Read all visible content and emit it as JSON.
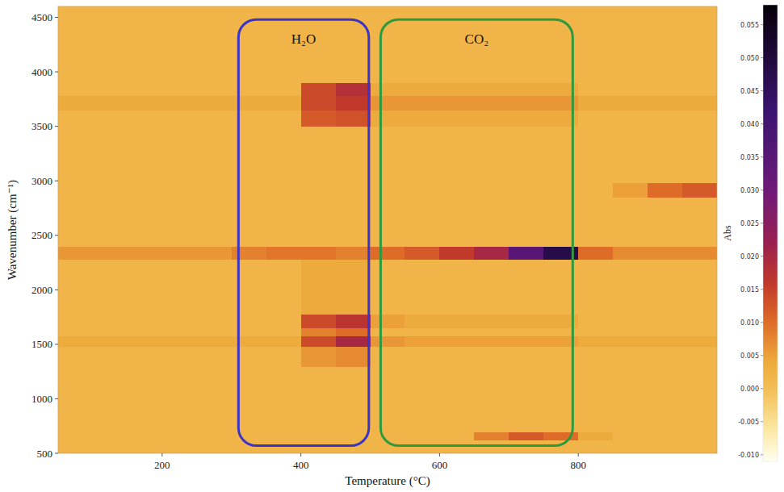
{
  "chart_data": {
    "type": "heatmap",
    "x_label": "Temperature (°C)",
    "y_label": "Wavenumber (cm⁻¹)",
    "xlim": [
      50,
      1000
    ],
    "ylim": [
      500,
      4600
    ],
    "xticks": [
      200,
      400,
      600,
      800
    ],
    "yticks": [
      500,
      1000,
      1500,
      2000,
      2500,
      3000,
      3500,
      4000,
      4500
    ],
    "grid": false,
    "x_edges": [
      50,
      100,
      150,
      200,
      250,
      300,
      350,
      400,
      450,
      500,
      550,
      600,
      650,
      700,
      750,
      800,
      850,
      900,
      950,
      1000
    ],
    "y_edges": [
      500,
      620,
      700,
      1300,
      1480,
      1580,
      1650,
      1780,
      2280,
      2400,
      2850,
      2980,
      3500,
      3650,
      3780,
      3900,
      4600
    ],
    "cells": [
      [
        0.002,
        0.002,
        0.002,
        0.002,
        0.002,
        0.002,
        0.002,
        0.002,
        0.002,
        0.002,
        0.002,
        0.002,
        0.002,
        0.002,
        0.002,
        0.002,
        0.002,
        0.002,
        0.002
      ],
      [
        0.002,
        0.002,
        0.002,
        0.002,
        0.002,
        0.002,
        0.002,
        0.002,
        0.002,
        0.002,
        0.002,
        0.002,
        0.008,
        0.012,
        0.01,
        0.004,
        0.002,
        0.002,
        0.002
      ],
      [
        0.002,
        0.002,
        0.002,
        0.002,
        0.002,
        0.002,
        0.002,
        0.002,
        0.002,
        0.002,
        0.002,
        0.002,
        0.002,
        0.002,
        0.002,
        0.002,
        0.002,
        0.002,
        0.002
      ],
      [
        0.002,
        0.002,
        0.002,
        0.002,
        0.002,
        0.002,
        0.002,
        0.006,
        0.007,
        0.002,
        0.002,
        0.002,
        0.002,
        0.002,
        0.002,
        0.002,
        0.002,
        0.002,
        0.002
      ],
      [
        0.004,
        0.004,
        0.004,
        0.004,
        0.004,
        0.004,
        0.004,
        0.014,
        0.02,
        0.006,
        0.005,
        0.005,
        0.005,
        0.005,
        0.005,
        0.004,
        0.004,
        0.004,
        0.004
      ],
      [
        0.002,
        0.002,
        0.002,
        0.002,
        0.002,
        0.002,
        0.002,
        0.008,
        0.01,
        0.002,
        0.002,
        0.002,
        0.002,
        0.002,
        0.002,
        0.002,
        0.002,
        0.002,
        0.002
      ],
      [
        0.002,
        0.002,
        0.002,
        0.002,
        0.002,
        0.002,
        0.002,
        0.014,
        0.017,
        0.005,
        0.004,
        0.004,
        0.004,
        0.004,
        0.004,
        0.002,
        0.002,
        0.002,
        0.002
      ],
      [
        0.002,
        0.002,
        0.002,
        0.002,
        0.002,
        0.002,
        0.002,
        0.004,
        0.004,
        0.002,
        0.002,
        0.002,
        0.002,
        0.002,
        0.002,
        0.002,
        0.002,
        0.002,
        0.002
      ],
      [
        0.006,
        0.006,
        0.006,
        0.006,
        0.006,
        0.008,
        0.009,
        0.009,
        0.008,
        0.01,
        0.012,
        0.016,
        0.02,
        0.035,
        0.048,
        0.01,
        0.007,
        0.007,
        0.007
      ],
      [
        0.002,
        0.002,
        0.002,
        0.002,
        0.002,
        0.002,
        0.002,
        0.002,
        0.002,
        0.002,
        0.002,
        0.002,
        0.002,
        0.002,
        0.002,
        0.002,
        0.002,
        0.002,
        0.002
      ],
      [
        0.002,
        0.002,
        0.002,
        0.002,
        0.002,
        0.002,
        0.002,
        0.002,
        0.002,
        0.002,
        0.002,
        0.002,
        0.002,
        0.002,
        0.002,
        0.002,
        0.005,
        0.01,
        0.012
      ],
      [
        0.002,
        0.002,
        0.002,
        0.002,
        0.002,
        0.002,
        0.002,
        0.002,
        0.002,
        0.002,
        0.002,
        0.002,
        0.002,
        0.002,
        0.002,
        0.002,
        0.002,
        0.002,
        0.002
      ],
      [
        0.002,
        0.002,
        0.002,
        0.002,
        0.002,
        0.002,
        0.002,
        0.012,
        0.013,
        0.004,
        0.004,
        0.004,
        0.004,
        0.004,
        0.004,
        0.002,
        0.002,
        0.002,
        0.002
      ],
      [
        0.004,
        0.004,
        0.004,
        0.004,
        0.004,
        0.004,
        0.004,
        0.014,
        0.016,
        0.006,
        0.006,
        0.006,
        0.006,
        0.006,
        0.006,
        0.004,
        0.004,
        0.004,
        0.004
      ],
      [
        0.002,
        0.002,
        0.002,
        0.002,
        0.002,
        0.002,
        0.002,
        0.014,
        0.018,
        0.004,
        0.004,
        0.004,
        0.004,
        0.004,
        0.004,
        0.002,
        0.002,
        0.002,
        0.002
      ],
      [
        0.002,
        0.002,
        0.002,
        0.002,
        0.002,
        0.002,
        0.002,
        0.002,
        0.002,
        0.002,
        0.002,
        0.002,
        0.002,
        0.002,
        0.002,
        0.002,
        0.002,
        0.002,
        0.002
      ]
    ],
    "colorbar": {
      "label": "Abs",
      "range": [
        -0.011,
        0.058
      ],
      "ticks": [
        {
          "value": -0.01,
          "label": "-0.010"
        },
        -0.005,
        {
          "value": 0,
          "label": "0.000"
        },
        0.005,
        {
          "value": 0.01,
          "label": "0.010"
        },
        0.015,
        {
          "value": 0.02,
          "label": "0.020"
        },
        0.025,
        {
          "value": 0.03,
          "label": "0.030"
        },
        0.035,
        {
          "value": 0.04,
          "label": "0.040"
        },
        0.045,
        {
          "value": 0.05,
          "label": "0.050"
        },
        0.055
      ]
    },
    "annotations": [
      {
        "text": "H₂O",
        "x0": 310,
        "x1": 498,
        "y0": 570,
        "y1": 4480,
        "color": "#3b34c4"
      },
      {
        "text": "CO₂",
        "x0": 515,
        "x1": 792,
        "y0": 570,
        "y1": 4480,
        "color": "#2f9a3c"
      }
    ]
  }
}
